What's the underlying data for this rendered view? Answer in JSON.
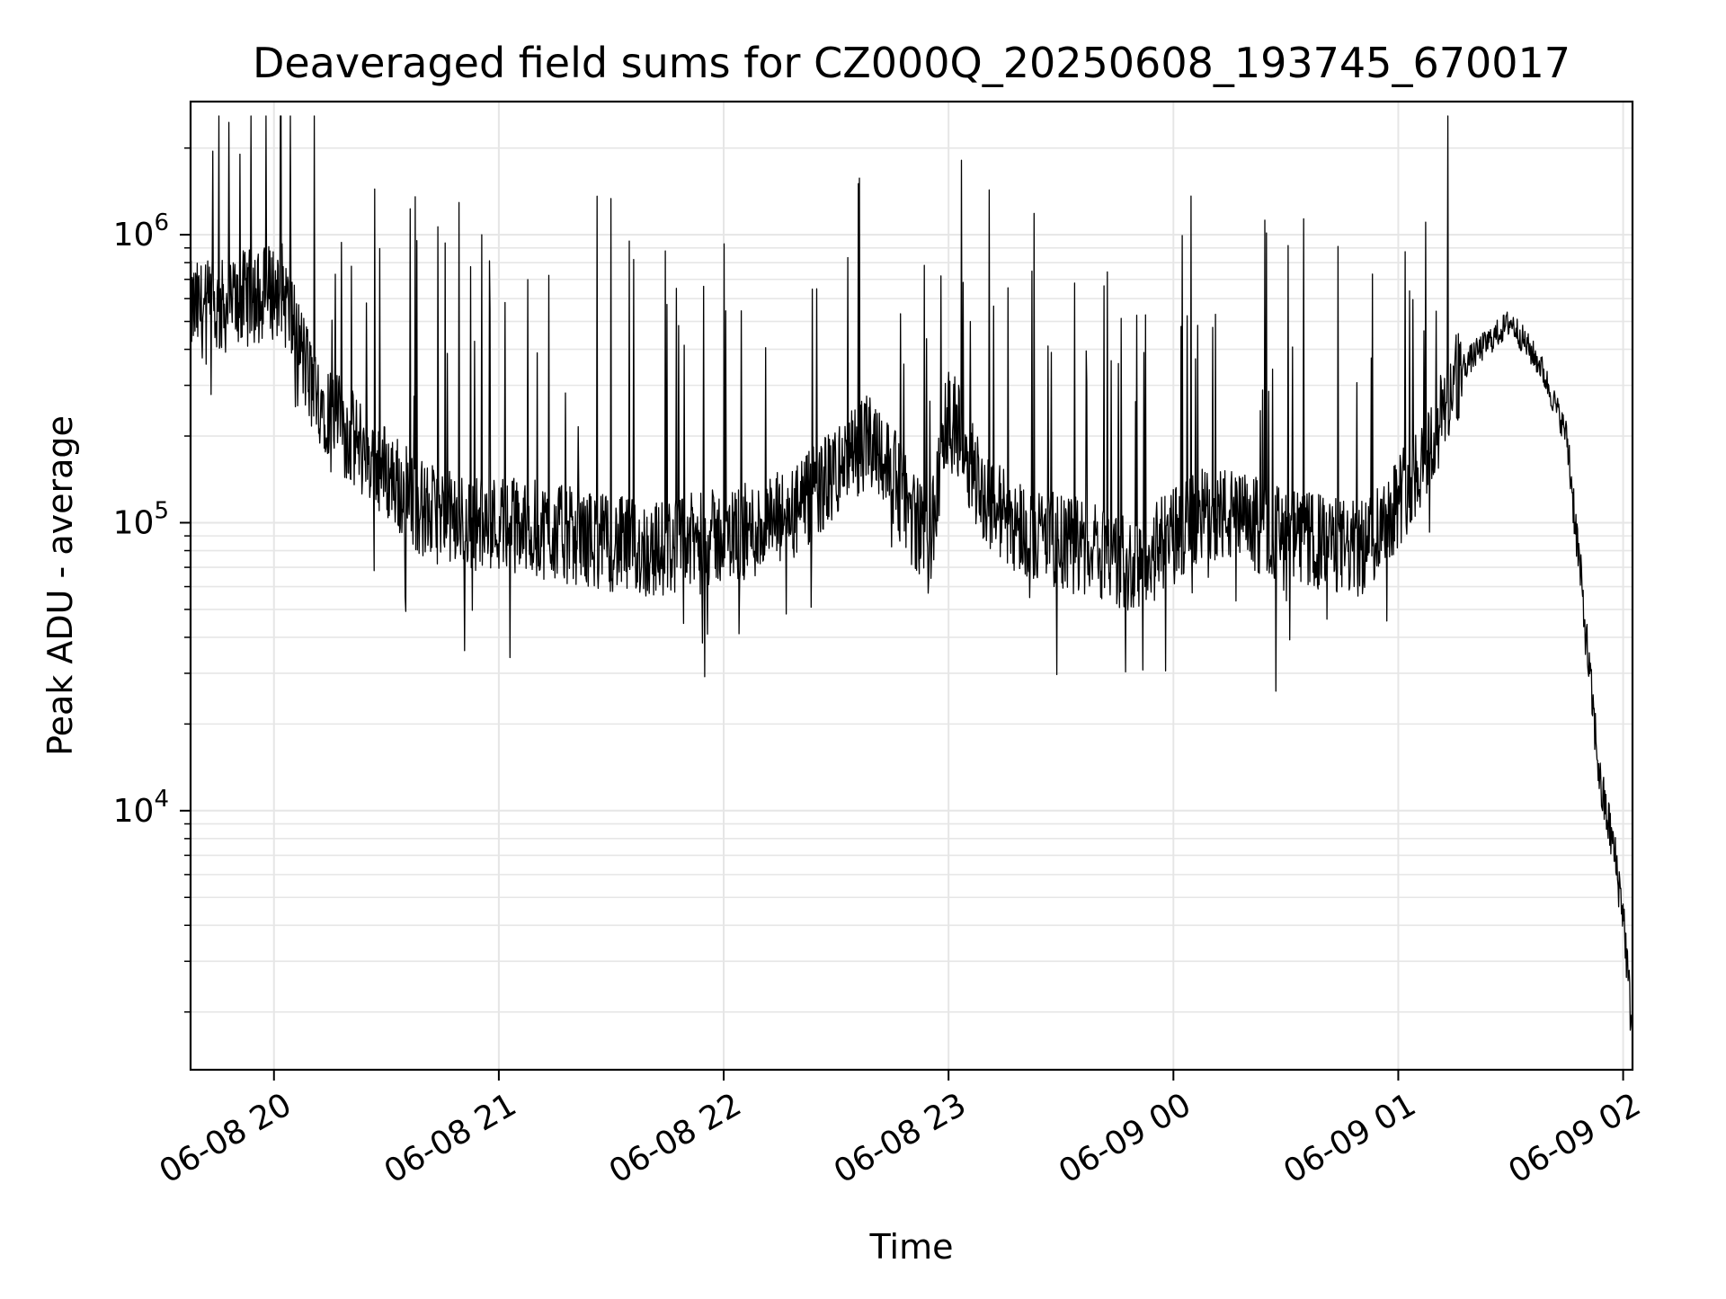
{
  "chart_data": {
    "type": "line",
    "title": "Deaveraged field sums for CZ000Q_20250608_193745_670017",
    "xlabel": "Time",
    "ylabel": "Peak ADU - average",
    "yscale": "log",
    "grid": true,
    "line_color": "#000000",
    "grid_color": "#e6e6e6",
    "xlim": [
      "2025-06-08 19:37:45",
      "2025-06-09 02:02:30"
    ],
    "ylim": [
      1260,
      2900000
    ],
    "x_ticks": [
      {
        "value": "2025-06-08 20:00",
        "label": "06-08 20"
      },
      {
        "value": "2025-06-08 21:00",
        "label": "06-08 21"
      },
      {
        "value": "2025-06-08 22:00",
        "label": "06-08 22"
      },
      {
        "value": "2025-06-08 23:00",
        "label": "06-08 23"
      },
      {
        "value": "2025-06-09 00:00",
        "label": "06-09 00"
      },
      {
        "value": "2025-06-09 01:00",
        "label": "06-09 01"
      },
      {
        "value": "2025-06-09 02:00",
        "label": "06-09 02"
      }
    ],
    "y_ticks": [
      {
        "value": 10000,
        "base": "10",
        "exp": "4"
      },
      {
        "value": 100000,
        "base": "10",
        "exp": "5"
      },
      {
        "value": 1000000,
        "base": "10",
        "exp": "6"
      }
    ],
    "series": [
      {
        "x": [
          "2025-06-08 19:37:45",
          "2025-06-08 19:45",
          "2025-06-08 19:52",
          "2025-06-08 20:02",
          "2025-06-08 20:06",
          "2025-06-08 20:10",
          "2025-06-08 20:20",
          "2025-06-08 20:30",
          "2025-06-08 20:40",
          "2025-06-08 20:50",
          "2025-06-08 21:00",
          "2025-06-08 21:10",
          "2025-06-08 21:20",
          "2025-06-08 21:30",
          "2025-06-08 21:40",
          "2025-06-08 21:50",
          "2025-06-08 22:00",
          "2025-06-08 22:10",
          "2025-06-08 22:20",
          "2025-06-08 22:30",
          "2025-06-08 22:40",
          "2025-06-08 22:50",
          "2025-06-08 22:55",
          "2025-06-08 23:00",
          "2025-06-08 23:10",
          "2025-06-08 23:20",
          "2025-06-08 23:30",
          "2025-06-08 23:40",
          "2025-06-08 23:50",
          "2025-06-09 00:00",
          "2025-06-09 00:10",
          "2025-06-09 00:20",
          "2025-06-09 00:30",
          "2025-06-09 00:40",
          "2025-06-09 00:50",
          "2025-06-09 01:00",
          "2025-06-09 01:10",
          "2025-06-09 01:15",
          "2025-06-09 01:20",
          "2025-06-09 01:30",
          "2025-06-09 01:38",
          "2025-06-09 01:45",
          "2025-06-09 01:48",
          "2025-06-09 01:51",
          "2025-06-09 01:54",
          "2025-06-09 01:57",
          "2025-06-09 02:00",
          "2025-06-09 02:02"
        ],
        "y": [
          550000,
          550000,
          600000,
          650000,
          450000,
          300000,
          200000,
          150000,
          110000,
          100000,
          100000,
          95000,
          90000,
          85000,
          80000,
          85000,
          90000,
          95000,
          110000,
          150000,
          200000,
          110000,
          80000,
          250000,
          120000,
          95000,
          85000,
          80000,
          70000,
          90000,
          110000,
          100000,
          90000,
          85000,
          80000,
          120000,
          200000,
          320000,
          380000,
          500000,
          350000,
          200000,
          80000,
          30000,
          12000,
          8000,
          4500,
          2000
        ]
      }
    ]
  }
}
